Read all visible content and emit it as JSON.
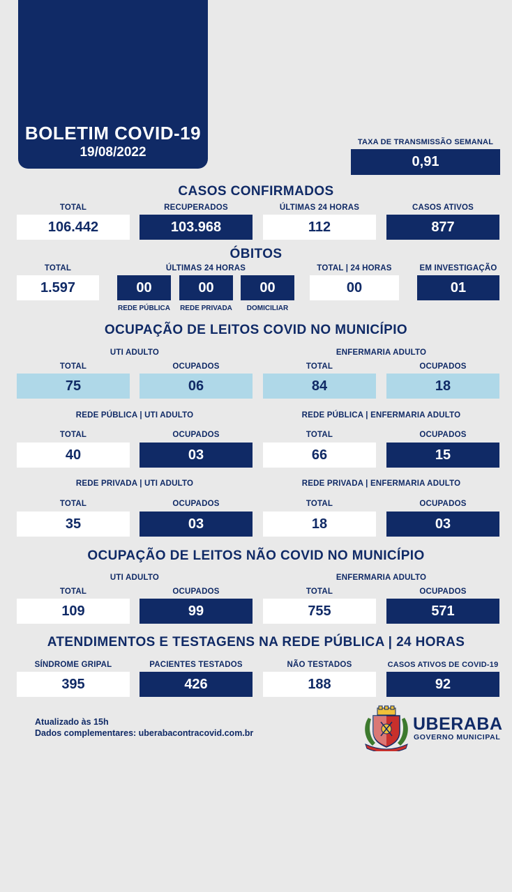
{
  "header": {
    "title": "BOLETIM COVID-19",
    "date": "19/08/2022"
  },
  "transmission": {
    "label": "TAXA DE TRANSMISSÃO SEMANAL",
    "value": "0,91"
  },
  "confirmed": {
    "title": "CASOS CONFIRMADOS",
    "items": [
      {
        "label": "TOTAL",
        "value": "106.442"
      },
      {
        "label": "RECUPERADOS",
        "value": "103.968"
      },
      {
        "label": "ÚLTIMAS 24 HORAS",
        "value": "112"
      },
      {
        "label": "CASOS ATIVOS",
        "value": "877"
      }
    ]
  },
  "deaths": {
    "title": "ÓBITOS",
    "total_label": "TOTAL",
    "total_value": "1.597",
    "last24_label": "ÚLTIMAS 24 HORAS",
    "last24": [
      {
        "value": "00",
        "label": "REDE PÚBLICA"
      },
      {
        "value": "00",
        "label": "REDE PRIVADA"
      },
      {
        "value": "00",
        "label": "DOMICILIAR"
      }
    ],
    "total24_label": "TOTAL | 24 HORAS",
    "total24_value": "00",
    "investigation_label": "EM INVESTIGAÇÃO",
    "investigation_value": "01"
  },
  "covid_beds": {
    "title": "OCUPAÇÃO DE LEITOS COVID NO MUNICÍPIO",
    "general": {
      "uti_label": "UTI ADULTO",
      "enf_label": "ENFERMARIA ADULTO",
      "items": [
        {
          "label": "TOTAL",
          "value": "75"
        },
        {
          "label": "OCUPADOS",
          "value": "06"
        },
        {
          "label": "TOTAL",
          "value": "84"
        },
        {
          "label": "OCUPADOS",
          "value": "18"
        }
      ]
    },
    "public": {
      "uti_label": "REDE PÚBLICA | UTI ADULTO",
      "enf_label": "REDE PÚBLICA | ENFERMARIA ADULTO",
      "items": [
        {
          "label": "TOTAL",
          "value": "40"
        },
        {
          "label": "OCUPADOS",
          "value": "03"
        },
        {
          "label": "TOTAL",
          "value": "66"
        },
        {
          "label": "OCUPADOS",
          "value": "15"
        }
      ]
    },
    "private": {
      "uti_label": "REDE PRIVADA | UTI ADULTO",
      "enf_label": "REDE PRIVADA | ENFERMARIA ADULTO",
      "items": [
        {
          "label": "TOTAL",
          "value": "35"
        },
        {
          "label": "OCUPADOS",
          "value": "03"
        },
        {
          "label": "TOTAL",
          "value": "18"
        },
        {
          "label": "OCUPADOS",
          "value": "03"
        }
      ]
    }
  },
  "non_covid_beds": {
    "title": "OCUPAÇÃO DE LEITOS NÃO COVID NO MUNICÍPIO",
    "uti_label": "UTI ADULTO",
    "enf_label": "ENFERMARIA ADULTO",
    "items": [
      {
        "label": "TOTAL",
        "value": "109"
      },
      {
        "label": "OCUPADOS",
        "value": "99"
      },
      {
        "label": "TOTAL",
        "value": "755"
      },
      {
        "label": "OCUPADOS",
        "value": "571"
      }
    ]
  },
  "services": {
    "title": "ATENDIMENTOS E TESTAGENS NA REDE PÚBLICA | 24 HORAS",
    "items": [
      {
        "label": "SÍNDROME GRIPAL",
        "value": "395"
      },
      {
        "label": "PACIENTES TESTADOS",
        "value": "426"
      },
      {
        "label": "NÃO TESTADOS",
        "value": "188"
      },
      {
        "label": "CASOS ATIVOS DE COVID-19",
        "value": "92"
      }
    ]
  },
  "footer": {
    "updated": "Atualizado às 15h",
    "complementary": "Dados complementares: uberabacontracovid.com.br",
    "logo_name": "UBERABA",
    "logo_sub": "GOVERNO MUNICIPAL",
    "crest_icon": "city-coat-of-arms-icon"
  },
  "colors": {
    "navy": "#102a66",
    "light_blue": "#afd8e8",
    "background": "#e9e9e9",
    "white": "#ffffff"
  }
}
